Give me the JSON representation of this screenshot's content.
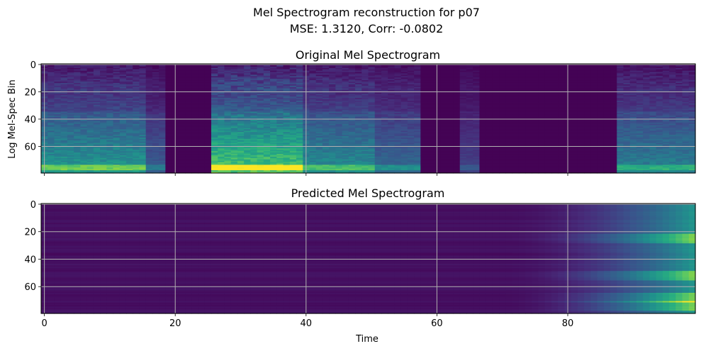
{
  "figure": {
    "suptitle_line1": "Mel Spectrogram reconstruction for p07",
    "suptitle_line2": "MSE: 1.3120, Corr: -0.0802"
  },
  "chart_data": [
    {
      "type": "heatmap",
      "title": "Original Mel Spectrogram",
      "xlabel": "",
      "ylabel": "Log Mel-Spec Bin",
      "xlim": [
        -0.5,
        99.5
      ],
      "ylim": [
        79.5,
        -0.5
      ],
      "xticks": [
        0,
        20,
        40,
        60,
        80
      ],
      "xtick_labels_visible": false,
      "yticks": [
        0,
        20,
        40,
        60
      ],
      "grid": true,
      "colormap": "viridis",
      "shape": [
        80,
        100
      ],
      "segments": [
        {
          "x": [
            0,
            16
          ],
          "energy": 0.55
        },
        {
          "x": [
            16,
            19
          ],
          "energy": 0.3
        },
        {
          "x": [
            26,
            40
          ],
          "energy": 0.75
        },
        {
          "x": [
            40,
            51
          ],
          "energy": 0.5
        },
        {
          "x": [
            51,
            58
          ],
          "energy": 0.35
        },
        {
          "x": [
            64,
            67
          ],
          "energy": 0.2
        },
        {
          "x": [
            88,
            100
          ],
          "energy": 0.45
        }
      ]
    },
    {
      "type": "heatmap",
      "title": "Predicted Mel Spectrogram",
      "xlabel": "Time",
      "ylabel": "",
      "xlim": [
        -0.5,
        99.5
      ],
      "ylim": [
        79.5,
        -0.5
      ],
      "xticks": [
        0,
        20,
        40,
        60,
        80
      ],
      "yticks": [
        0,
        20,
        40,
        60
      ],
      "grid": true,
      "colormap": "viridis",
      "shape": [
        80,
        100
      ],
      "ramp_start": 70,
      "peak_bins": [
        25,
        52,
        68,
        74
      ]
    }
  ],
  "colors": {
    "viridis_low": "#440154",
    "viridis_mid": "#21918c",
    "viridis_high": "#fde725",
    "grid": "#b0b0b0"
  }
}
